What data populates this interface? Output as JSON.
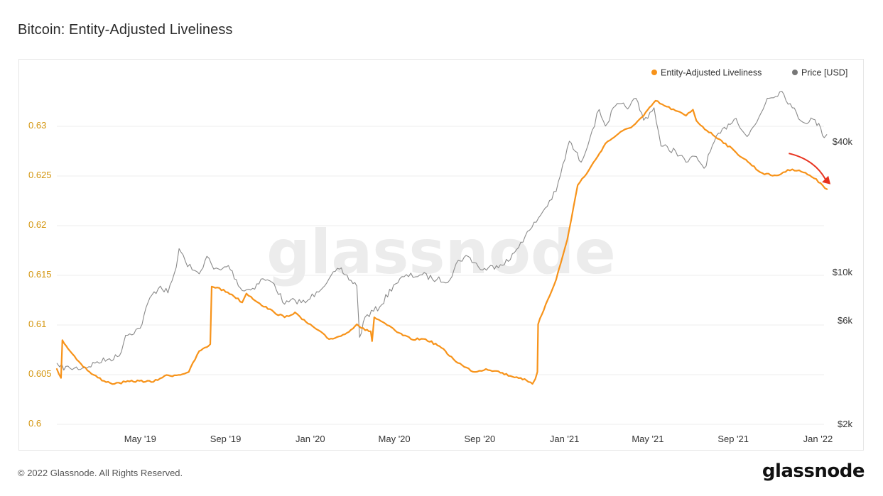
{
  "title": "Bitcoin: Entity-Adjusted Liveliness",
  "footer": "© 2022 Glassnode. All Rights Reserved.",
  "brand": "glassnode",
  "watermark": "glassnode",
  "colors": {
    "liveliness": "#f7931a",
    "price": "#8a8a8a",
    "arrow": "#e8321e",
    "left_axis_text": "#d4960f",
    "right_axis_text": "#333333",
    "grid": "#eeeeee"
  },
  "chart_data": {
    "type": "line",
    "title": "Bitcoin: Entity-Adjusted Liveliness",
    "legend_position": "top-right",
    "grid": true,
    "x_ticks": [
      "May '19",
      "Sep '19",
      "Jan '20",
      "May '20",
      "Sep '20",
      "Jan '21",
      "May '21",
      "Sep '21",
      "Jan '22"
    ],
    "xlim": [
      "2019-01-01",
      "2022-01-20"
    ],
    "y_left": {
      "ticks": [
        0.6,
        0.605,
        0.61,
        0.615,
        0.62,
        0.625,
        0.63
      ],
      "tick_labels": [
        "0.6",
        "0.605",
        "0.61",
        "0.615",
        "0.62",
        "0.625",
        "0.63"
      ],
      "lim": [
        0.6,
        0.6325
      ]
    },
    "y_right": {
      "scale": "log",
      "ticks": [
        2000,
        6000,
        10000,
        40000
      ],
      "tick_labels": [
        "$2k",
        "$6k",
        "$10k",
        "$40k"
      ]
    },
    "series": [
      {
        "name": "Entity-Adjusted Liveliness",
        "axis": "left",
        "points": [
          [
            "2019-01-01",
            0.6055
          ],
          [
            "2019-01-04",
            0.605
          ],
          [
            "2019-01-07",
            0.6046
          ],
          [
            "2019-01-09",
            0.6084
          ],
          [
            "2019-01-20",
            0.6073
          ],
          [
            "2019-02-05",
            0.606
          ],
          [
            "2019-02-20",
            0.605
          ],
          [
            "2019-03-10",
            0.6043
          ],
          [
            "2019-03-25",
            0.604
          ],
          [
            "2019-04-10",
            0.6042
          ],
          [
            "2019-04-30",
            0.6043
          ],
          [
            "2019-05-20",
            0.6042
          ],
          [
            "2019-06-05",
            0.6048
          ],
          [
            "2019-06-25",
            0.6049
          ],
          [
            "2019-07-10",
            0.6052
          ],
          [
            "2019-07-25",
            0.6073
          ],
          [
            "2019-08-05",
            0.6077
          ],
          [
            "2019-08-10",
            0.608
          ],
          [
            "2019-08-12",
            0.6138
          ],
          [
            "2019-08-20",
            0.6137
          ],
          [
            "2019-09-10",
            0.613
          ],
          [
            "2019-09-25",
            0.6122
          ],
          [
            "2019-10-01",
            0.6131
          ],
          [
            "2019-10-20",
            0.6121
          ],
          [
            "2019-11-10",
            0.6112
          ],
          [
            "2019-11-25",
            0.6107
          ],
          [
            "2019-12-10",
            0.6112
          ],
          [
            "2019-12-20",
            0.6105
          ],
          [
            "2020-01-10",
            0.6095
          ],
          [
            "2020-01-28",
            0.6085
          ],
          [
            "2020-02-08",
            0.6087
          ],
          [
            "2020-02-20",
            0.609
          ],
          [
            "2020-03-08",
            0.61
          ],
          [
            "2020-03-20",
            0.6094
          ],
          [
            "2020-03-28",
            0.6093
          ],
          [
            "2020-03-30",
            0.6083
          ],
          [
            "2020-04-02",
            0.6107
          ],
          [
            "2020-04-15",
            0.6102
          ],
          [
            "2020-05-05",
            0.6092
          ],
          [
            "2020-05-25",
            0.6085
          ],
          [
            "2020-06-15",
            0.6085
          ],
          [
            "2020-07-05",
            0.6078
          ],
          [
            "2020-07-25",
            0.6065
          ],
          [
            "2020-08-10",
            0.6057
          ],
          [
            "2020-08-25",
            0.6052
          ],
          [
            "2020-09-10",
            0.6055
          ],
          [
            "2020-09-25",
            0.6053
          ],
          [
            "2020-10-15",
            0.6048
          ],
          [
            "2020-10-30",
            0.6046
          ],
          [
            "2020-11-10",
            0.6042
          ],
          [
            "2020-11-16",
            0.604
          ],
          [
            "2020-11-20",
            0.6045
          ],
          [
            "2020-11-23",
            0.6052
          ],
          [
            "2020-11-24",
            0.61
          ],
          [
            "2020-12-05",
            0.612
          ],
          [
            "2020-12-20",
            0.6145
          ],
          [
            "2021-01-05",
            0.6185
          ],
          [
            "2021-01-20",
            0.624
          ],
          [
            "2021-02-05",
            0.6255
          ],
          [
            "2021-02-15",
            0.6266
          ],
          [
            "2021-03-01",
            0.6282
          ],
          [
            "2021-03-20",
            0.6292
          ],
          [
            "2021-04-10",
            0.63
          ],
          [
            "2021-04-25",
            0.631
          ],
          [
            "2021-05-12",
            0.6325
          ],
          [
            "2021-05-25",
            0.632
          ],
          [
            "2021-06-10",
            0.6315
          ],
          [
            "2021-06-25",
            0.631
          ],
          [
            "2021-07-05",
            0.6316
          ],
          [
            "2021-07-10",
            0.6305
          ],
          [
            "2021-07-25",
            0.6295
          ],
          [
            "2021-08-15",
            0.6285
          ],
          [
            "2021-09-05",
            0.6273
          ],
          [
            "2021-09-25",
            0.6262
          ],
          [
            "2021-10-10",
            0.6253
          ],
          [
            "2021-10-25",
            0.625
          ],
          [
            "2021-11-05",
            0.625
          ],
          [
            "2021-11-12",
            0.6253
          ],
          [
            "2021-11-25",
            0.6256
          ],
          [
            "2021-12-05",
            0.6255
          ],
          [
            "2021-12-20",
            0.625
          ],
          [
            "2022-01-05",
            0.6242
          ],
          [
            "2022-01-14",
            0.6236
          ]
        ]
      },
      {
        "name": "Price [USD]",
        "axis": "right",
        "points": [
          [
            "2019-01-01",
            3800
          ],
          [
            "2019-01-05",
            3650
          ],
          [
            "2019-01-20",
            3600
          ],
          [
            "2019-02-10",
            3620
          ],
          [
            "2019-02-25",
            3800
          ],
          [
            "2019-03-15",
            3950
          ],
          [
            "2019-04-01",
            4100
          ],
          [
            "2019-04-10",
            5100
          ],
          [
            "2019-05-01",
            5500
          ],
          [
            "2019-05-15",
            7600
          ],
          [
            "2019-05-30",
            8600
          ],
          [
            "2019-06-10",
            8000
          ],
          [
            "2019-06-22",
            10500
          ],
          [
            "2019-06-26",
            12800
          ],
          [
            "2019-07-05",
            11200
          ],
          [
            "2019-07-15",
            10200
          ],
          [
            "2019-07-25",
            9800
          ],
          [
            "2019-08-05",
            11800
          ],
          [
            "2019-08-15",
            10300
          ],
          [
            "2019-08-25",
            10200
          ],
          [
            "2019-09-05",
            10700
          ],
          [
            "2019-09-25",
            8200
          ],
          [
            "2019-10-10",
            8400
          ],
          [
            "2019-10-25",
            9300
          ],
          [
            "2019-11-10",
            8800
          ],
          [
            "2019-11-25",
            7100
          ],
          [
            "2019-12-10",
            7400
          ],
          [
            "2019-12-25",
            7200
          ],
          [
            "2020-01-10",
            8100
          ],
          [
            "2020-01-28",
            9300
          ],
          [
            "2020-02-12",
            10300
          ],
          [
            "2020-02-20",
            9700
          ],
          [
            "2020-03-08",
            8600
          ],
          [
            "2020-03-12",
            5000
          ],
          [
            "2020-03-20",
            6200
          ],
          [
            "2020-04-10",
            6900
          ],
          [
            "2020-04-30",
            8700
          ],
          [
            "2020-05-15",
            9500
          ],
          [
            "2020-06-10",
            9700
          ],
          [
            "2020-07-01",
            9200
          ],
          [
            "2020-07-20",
            9200
          ],
          [
            "2020-08-01",
            11300
          ],
          [
            "2020-08-15",
            11800
          ],
          [
            "2020-09-05",
            10200
          ],
          [
            "2020-09-25",
            10700
          ],
          [
            "2020-10-15",
            11400
          ],
          [
            "2020-10-30",
            13700
          ],
          [
            "2020-11-15",
            16000
          ],
          [
            "2020-12-01",
            19000
          ],
          [
            "2020-12-20",
            23500
          ],
          [
            "2021-01-08",
            40000
          ],
          [
            "2021-01-25",
            32000
          ],
          [
            "2021-02-10",
            45000
          ],
          [
            "2021-02-20",
            56000
          ],
          [
            "2021-03-01",
            47000
          ],
          [
            "2021-03-15",
            58000
          ],
          [
            "2021-04-05",
            58000
          ],
          [
            "2021-04-14",
            63000
          ],
          [
            "2021-04-25",
            50000
          ],
          [
            "2021-05-10",
            57000
          ],
          [
            "2021-05-20",
            38000
          ],
          [
            "2021-06-10",
            36000
          ],
          [
            "2021-06-25",
            32000
          ],
          [
            "2021-07-10",
            34000
          ],
          [
            "2021-07-21",
            30000
          ],
          [
            "2021-08-05",
            40000
          ],
          [
            "2021-08-25",
            48000
          ],
          [
            "2021-09-05",
            51000
          ],
          [
            "2021-09-21",
            42000
          ],
          [
            "2021-10-05",
            49000
          ],
          [
            "2021-10-20",
            63000
          ],
          [
            "2021-11-10",
            68000
          ],
          [
            "2021-11-25",
            57000
          ],
          [
            "2021-12-10",
            49000
          ],
          [
            "2021-12-25",
            50500
          ],
          [
            "2022-01-05",
            46000
          ],
          [
            "2022-01-10",
            41500
          ],
          [
            "2022-01-14",
            43000
          ]
        ]
      }
    ],
    "annotations": [
      {
        "type": "arrow",
        "from": [
          "2021-11-20",
          0.6272
        ],
        "to": [
          "2022-01-16",
          0.6243
        ]
      }
    ]
  }
}
